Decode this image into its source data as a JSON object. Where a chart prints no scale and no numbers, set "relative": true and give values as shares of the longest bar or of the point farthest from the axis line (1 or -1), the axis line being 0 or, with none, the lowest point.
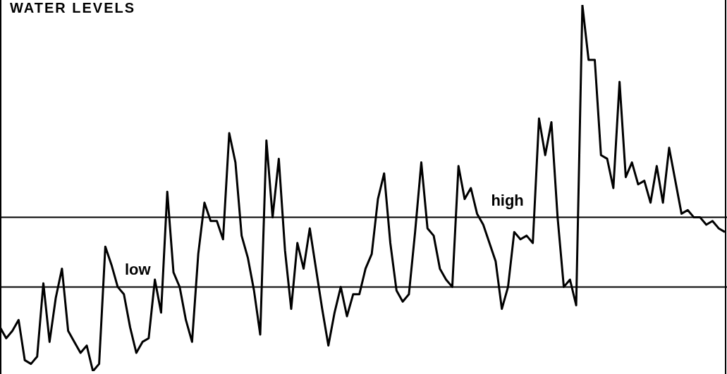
{
  "chart_data": {
    "type": "line",
    "title": "WATER LEVELS",
    "relative": true,
    "legend": false,
    "marker": "none",
    "line_style": "solid",
    "categories": [
      null,
      null,
      null,
      null,
      null,
      null,
      null,
      null,
      null,
      null,
      null,
      null,
      null,
      null,
      null,
      null,
      null,
      null,
      null,
      null,
      null,
      null,
      null,
      null,
      null,
      null,
      null,
      null,
      null,
      null,
      null,
      null,
      null,
      null,
      null,
      null,
      null,
      null,
      null,
      null,
      null,
      null,
      null,
      null,
      null,
      null,
      null,
      null,
      null,
      null,
      null,
      null,
      null,
      null,
      null,
      null,
      null,
      null,
      null,
      null,
      null,
      null,
      null,
      null,
      null,
      null,
      null,
      null,
      null,
      null,
      null,
      null,
      null,
      null,
      null,
      null,
      null,
      null,
      null,
      null,
      null,
      null,
      null,
      null,
      null,
      null,
      null,
      null,
      null,
      null,
      null,
      null,
      null,
      null,
      null,
      null,
      null,
      null,
      null,
      null,
      null,
      null,
      null,
      null,
      null,
      null,
      null,
      null,
      null,
      null,
      null,
      null,
      null,
      null,
      null,
      null,
      null,
      null
    ],
    "ref_lines": [
      {
        "axis": "y",
        "value": 0.42,
        "label": "high",
        "color": "#000000"
      },
      {
        "axis": "y",
        "value": 0.23,
        "label": "low",
        "color": "#000000"
      }
    ],
    "series": [
      {
        "color": "#000000",
        "values": [
          0.12,
          0.09,
          0.11,
          0.14,
          0.03,
          0.02,
          0.04,
          0.24,
          0.08,
          0.2,
          0.28,
          0.11,
          0.08,
          0.05,
          0.07,
          0,
          0.02,
          0.34,
          0.29,
          0.23,
          0.21,
          0.12,
          0.05,
          0.08,
          0.09,
          0.25,
          0.16,
          0.49,
          0.27,
          0.23,
          0.14,
          0.08,
          0.32,
          0.46,
          0.41,
          0.41,
          0.36,
          0.65,
          0.57,
          0.37,
          0.31,
          0.22,
          0.1,
          0.63,
          0.42,
          0.58,
          0.33,
          0.17,
          0.35,
          0.28,
          0.39,
          0.28,
          0.17,
          0.07,
          0.16,
          0.23,
          0.15,
          0.21,
          0.21,
          0.28,
          0.32,
          0.47,
          0.54,
          0.35,
          0.22,
          0.19,
          0.21,
          0.38,
          0.57,
          0.39,
          0.37,
          0.28,
          0.25,
          0.23,
          0.56,
          0.47,
          0.5,
          0.43,
          0.4,
          0.35,
          0.3,
          0.17,
          0.23,
          0.38,
          0.36,
          0.37,
          0.35,
          0.69,
          0.59,
          0.68,
          0.42,
          0.23,
          0.25,
          0.18,
          1,
          0.85,
          0.85,
          0.59,
          0.58,
          0.5,
          0.79,
          0.53,
          0.57,
          0.51,
          0.52,
          0.46,
          0.56,
          0.46,
          0.61,
          0.52,
          0.43,
          0.44,
          0.42,
          0.42,
          0.4,
          0.41,
          0.39,
          0.38
        ]
      }
    ]
  }
}
